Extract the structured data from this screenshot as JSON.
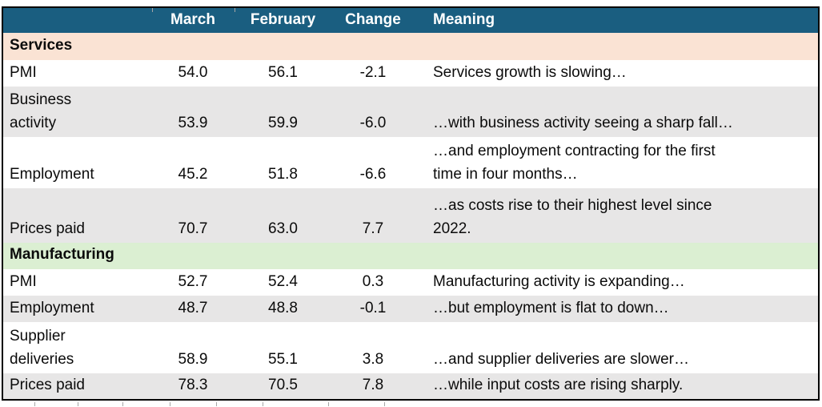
{
  "chart_data": {
    "type": "table",
    "columns": [
      "",
      "March",
      "February",
      "Change",
      "Meaning"
    ],
    "sections": [
      {
        "label": "Services",
        "rows": [
          {
            "label": "PMI",
            "march": "54.0",
            "february": "56.1",
            "change": "-2.1",
            "meaning": "Services growth is slowing…"
          },
          {
            "label": "Business\nactivity",
            "march": "53.9",
            "february": "59.9",
            "change": "-6.0",
            "meaning": "…with business activity seeing a sharp fall…"
          },
          {
            "label": "Employment",
            "march": "45.2",
            "february": "51.8",
            "change": "-6.6",
            "meaning": "…and employment contracting for the first\ntime in four months…"
          },
          {
            "label": "Prices paid",
            "march": "70.7",
            "february": "63.0",
            "change": "7.7",
            "meaning": "…as costs rise to their highest level since\n2022."
          }
        ]
      },
      {
        "label": "Manufacturing",
        "rows": [
          {
            "label": "PMI",
            "march": "52.7",
            "february": "52.4",
            "change": "0.3",
            "meaning": "Manufacturing activity is expanding…"
          },
          {
            "label": "Employment",
            "march": "48.7",
            "february": "48.8",
            "change": "-0.1",
            "meaning": "…but employment is flat to down…"
          },
          {
            "label": "Supplier\ndeliveries",
            "march": "58.9",
            "february": "55.1",
            "change": "3.8",
            "meaning": "…and supplier deliveries are slower…"
          },
          {
            "label": "Prices paid",
            "march": "78.3",
            "february": "70.5",
            "change": "7.8",
            "meaning": "…while input costs are rising sharply."
          }
        ]
      }
    ]
  },
  "colors": {
    "header_bg": "#1A5E80",
    "header_text": "#FFFFFF",
    "services_bg": "#FAE3D4",
    "manufacturing_bg": "#DBEFD2",
    "row_alt_bg": "#E7E6E6",
    "body_text": "#0B0B0B",
    "border": "#000000"
  }
}
